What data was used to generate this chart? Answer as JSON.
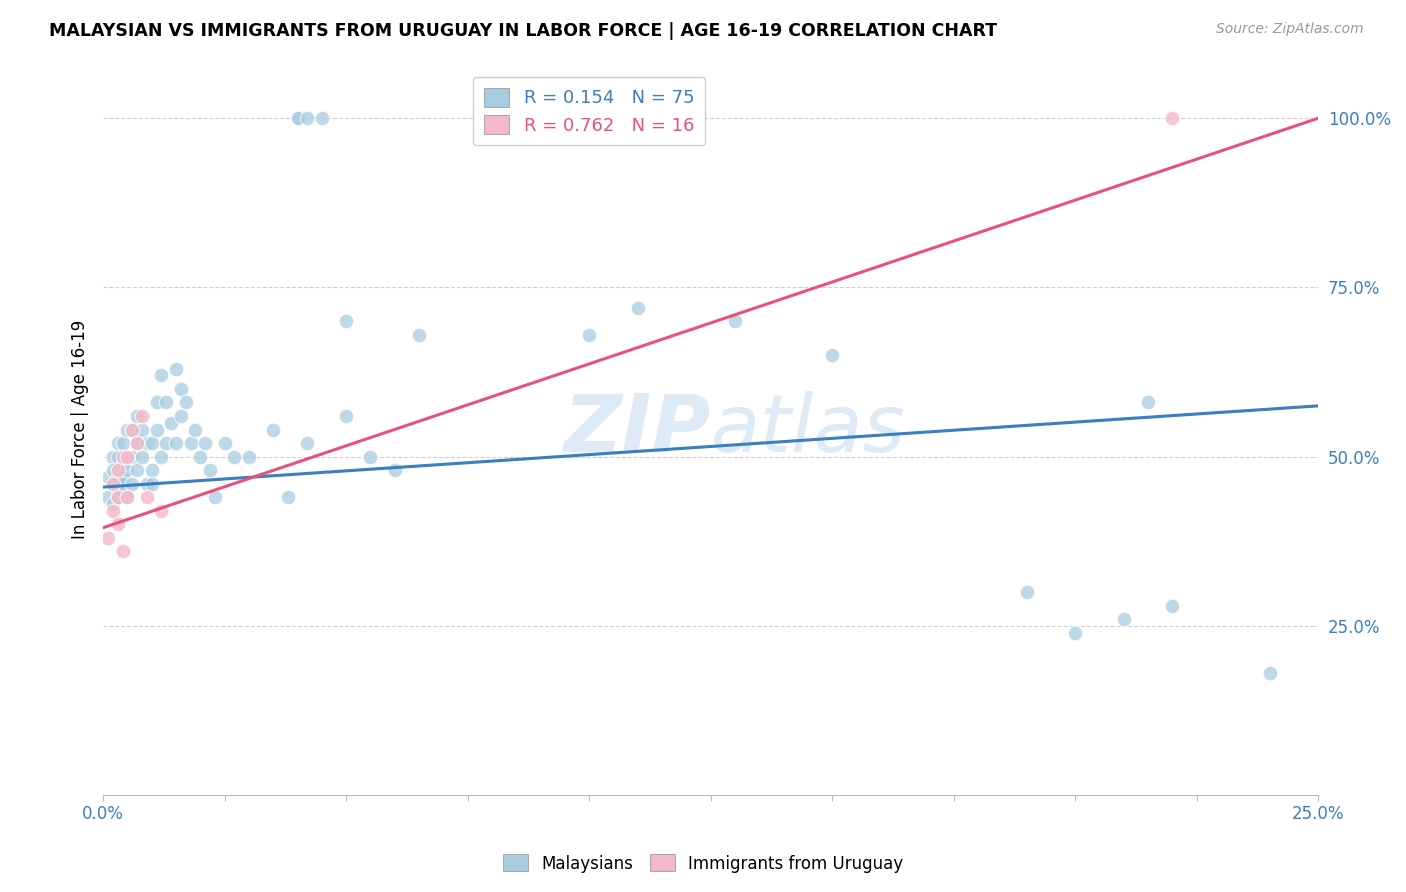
{
  "title": "MALAYSIAN VS IMMIGRANTS FROM URUGUAY IN LABOR FORCE | AGE 16-19 CORRELATION CHART",
  "source": "Source: ZipAtlas.com",
  "ylabel": "In Labor Force | Age 16-19",
  "x_min": 0.0,
  "x_max": 0.25,
  "y_min": 0.0,
  "y_max": 1.08,
  "y_ticks": [
    0.25,
    0.5,
    0.75,
    1.0
  ],
  "y_tick_labels": [
    "25.0%",
    "50.0%",
    "75.0%",
    "100.0%"
  ],
  "x_ticks": [
    0.0,
    0.025,
    0.05,
    0.075,
    0.1,
    0.125,
    0.15,
    0.175,
    0.2,
    0.225,
    0.25
  ],
  "x_tick_labels": [
    "0.0%",
    "",
    "",
    "",
    "",
    "",
    "",
    "",
    "",
    "",
    "25.0%"
  ],
  "blue_R": 0.154,
  "blue_N": 75,
  "pink_R": 0.762,
  "pink_N": 16,
  "blue_color": "#a8cce0",
  "pink_color": "#f4b8c8",
  "blue_line_color": "#3a7fc1",
  "pink_line_color": "#e8527a",
  "watermark_color": "#c8dff0",
  "blue_trend_x0": 0.0,
  "blue_trend_y0": 0.455,
  "blue_trend_x1": 0.25,
  "blue_trend_y1": 0.575,
  "pink_trend_x0": 0.0,
  "pink_trend_y0": 0.395,
  "pink_trend_x1": 0.25,
  "pink_trend_y1": 1.0,
  "blue_points_x": [
    0.001,
    0.001,
    0.002,
    0.002,
    0.002,
    0.002,
    0.003,
    0.003,
    0.003,
    0.003,
    0.003,
    0.004,
    0.004,
    0.004,
    0.004,
    0.005,
    0.005,
    0.005,
    0.005,
    0.006,
    0.006,
    0.006,
    0.007,
    0.007,
    0.007,
    0.008,
    0.008,
    0.009,
    0.009,
    0.01,
    0.01,
    0.01,
    0.011,
    0.011,
    0.012,
    0.012,
    0.013,
    0.013,
    0.014,
    0.015,
    0.015,
    0.016,
    0.016,
    0.017,
    0.018,
    0.019,
    0.02,
    0.021,
    0.022,
    0.023,
    0.025,
    0.027,
    0.03,
    0.035,
    0.038,
    0.042,
    0.05,
    0.055,
    0.06,
    0.065,
    0.04,
    0.045,
    0.04,
    0.042,
    0.05,
    0.1,
    0.11,
    0.13,
    0.15,
    0.19,
    0.2,
    0.21,
    0.215,
    0.22,
    0.24
  ],
  "blue_points_y": [
    0.44,
    0.47,
    0.43,
    0.46,
    0.5,
    0.48,
    0.45,
    0.47,
    0.5,
    0.52,
    0.44,
    0.46,
    0.49,
    0.52,
    0.47,
    0.44,
    0.48,
    0.5,
    0.54,
    0.46,
    0.5,
    0.54,
    0.48,
    0.52,
    0.56,
    0.5,
    0.54,
    0.46,
    0.52,
    0.48,
    0.52,
    0.46,
    0.58,
    0.54,
    0.5,
    0.62,
    0.52,
    0.58,
    0.55,
    0.63,
    0.52,
    0.6,
    0.56,
    0.58,
    0.52,
    0.54,
    0.5,
    0.52,
    0.48,
    0.44,
    0.52,
    0.5,
    0.5,
    0.54,
    0.44,
    0.52,
    0.56,
    0.5,
    0.48,
    0.68,
    1.0,
    1.0,
    1.0,
    1.0,
    0.7,
    0.68,
    0.72,
    0.7,
    0.65,
    0.3,
    0.24,
    0.26,
    0.58,
    0.28,
    0.18
  ],
  "pink_points_x": [
    0.001,
    0.002,
    0.002,
    0.003,
    0.003,
    0.003,
    0.004,
    0.004,
    0.005,
    0.005,
    0.006,
    0.007,
    0.008,
    0.009,
    0.012,
    0.22
  ],
  "pink_points_y": [
    0.38,
    0.42,
    0.46,
    0.4,
    0.44,
    0.48,
    0.36,
    0.5,
    0.44,
    0.5,
    0.54,
    0.52,
    0.56,
    0.44,
    0.42,
    1.0
  ]
}
